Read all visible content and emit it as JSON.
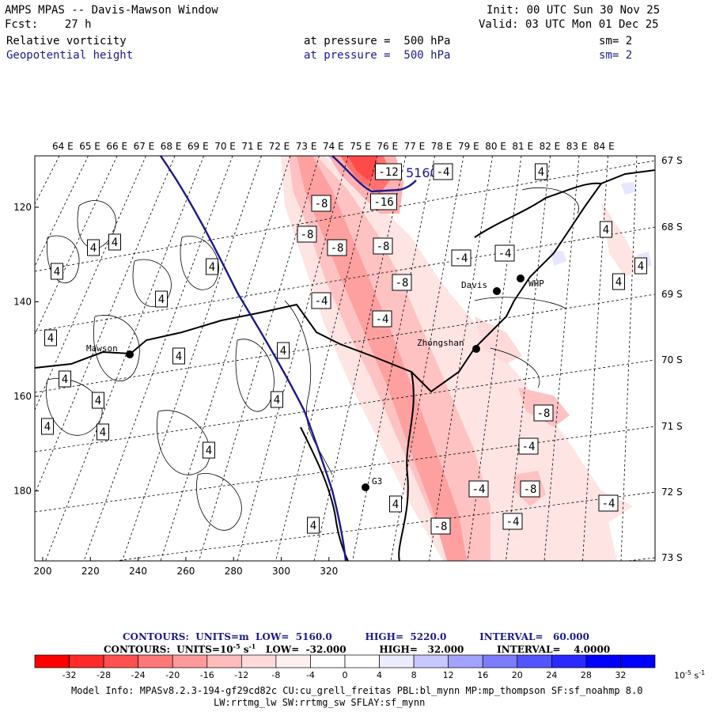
{
  "header": {
    "title": "AMPS MPAS -- Davis-Mawson Window",
    "fcst": "Fcst:    27 h",
    "init": "Init: 00 UTC Sun 30 Nov 25",
    "valid": "Valid: 03 UTC Mon 01 Dec 25",
    "field1": "Relative vorticity",
    "field1_level": "at pressure =  500 hPa",
    "field1_sm": "sm= 2",
    "field2": "Geopotential height",
    "field2_level": "at pressure =  500 hPa",
    "field2_sm": "sm= 2"
  },
  "map": {
    "lon_labels": [
      "64 E",
      "65 E",
      "66 E",
      "67 E",
      "68 E",
      "69 E",
      "70 E",
      "71 E",
      "72 E",
      "73 E",
      "74 E",
      "75 E",
      "76 E",
      "77 E",
      "78 E",
      "79 E",
      "80 E",
      "81 E",
      "82 E",
      "83 E",
      "84 E"
    ],
    "lat_labels": [
      "67 S",
      "68 S",
      "69 S",
      "70 S",
      "71 S",
      "72 S",
      "73 S"
    ],
    "x_ticks": [
      "200",
      "220",
      "240",
      "260",
      "280",
      "300",
      "320"
    ],
    "y_ticks": [
      "120",
      "140",
      "160",
      "180"
    ],
    "stations": [
      {
        "name": "Mawson"
      },
      {
        "name": "Davis"
      },
      {
        "name": "WHP"
      },
      {
        "name": "Zhongshan"
      },
      {
        "name": "G3"
      }
    ],
    "height_contour_label": "5160",
    "contour_labels": [
      "4",
      "-4",
      "-8",
      "-12",
      "-16"
    ]
  },
  "footer": {
    "contours1": "CONTOURS:  UNITS=m  LOW=  5160.0          HIGH=  5220.0          INTERVAL=   60.000",
    "contours2_prefix": "CONTOURS:  UNITS=10",
    "contours2_exp": "-5",
    "contours2_unit": " s",
    "contours2_exp2": "-1",
    "contours2_rest": "   LOW=  -32.000          HIGH=   32.000          INTERVAL=    4.0000",
    "colorbar_labels": [
      "-32",
      "-28",
      "-24",
      "-20",
      "-16",
      "-12",
      "-8",
      "-4",
      "0",
      "4",
      "8",
      "12",
      "16",
      "20",
      "24",
      "28",
      "32"
    ],
    "colorbar_unit": "10",
    "colorbar_unit_exp": "-5",
    "colorbar_unit_s": " s",
    "colorbar_unit_exp2": "-1",
    "model_info1": "Model Info: MPASv8.2.3-194-gf29cd82c CU:cu_grell_freitas PBL:bl_mynn MP:mp_thompson SF:sf_noahmp 8.0",
    "model_info2": "LW:rrtmg_lw SW:rrtmg_sw SFLAY:sf_mynn"
  },
  "colors": {
    "cb": [
      "#ff0000",
      "#ff2a2a",
      "#ff5050",
      "#ff7878",
      "#ff9a9a",
      "#ffbcbc",
      "#ffdada",
      "#fff0f0",
      "#ffffff",
      "#ffffff",
      "#ececff",
      "#c8c8ff",
      "#a2a2ff",
      "#7c7cff",
      "#5454ff",
      "#2a2aff",
      "#0000ff"
    ]
  }
}
